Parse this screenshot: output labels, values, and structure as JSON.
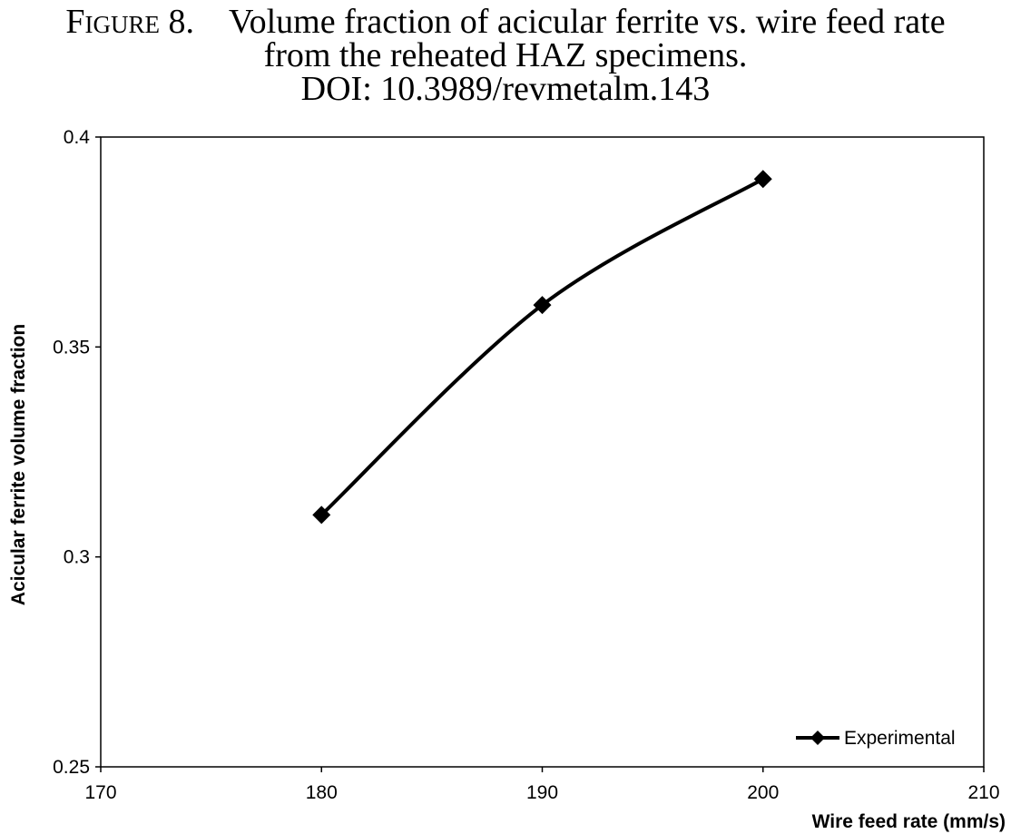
{
  "caption": {
    "label": "Figure 8.",
    "line1": "Volume fraction of acicular ferrite vs. wire feed rate",
    "line2": "from the reheated HAZ specimens.",
    "line3": "DOI: 10.3989/revmetalm.143"
  },
  "chart_data": {
    "type": "line",
    "title": "",
    "xlabel": "Wire feed rate (mm/s)",
    "ylabel": "Acicular ferrite volume fraction",
    "xlim": [
      170,
      210
    ],
    "ylim": [
      0.25,
      0.4
    ],
    "x_ticks": [
      "170",
      "180",
      "190",
      "200",
      "210"
    ],
    "y_ticks": [
      "0.25",
      "0.3",
      "0.35",
      "0.4"
    ],
    "grid": false,
    "legend_position": "bottom-right",
    "series": [
      {
        "name": "Experimental",
        "color": "#000000",
        "marker": "diamond",
        "smooth": true,
        "x": [
          180,
          190,
          200
        ],
        "y": [
          0.31,
          0.36,
          0.39
        ]
      }
    ]
  }
}
